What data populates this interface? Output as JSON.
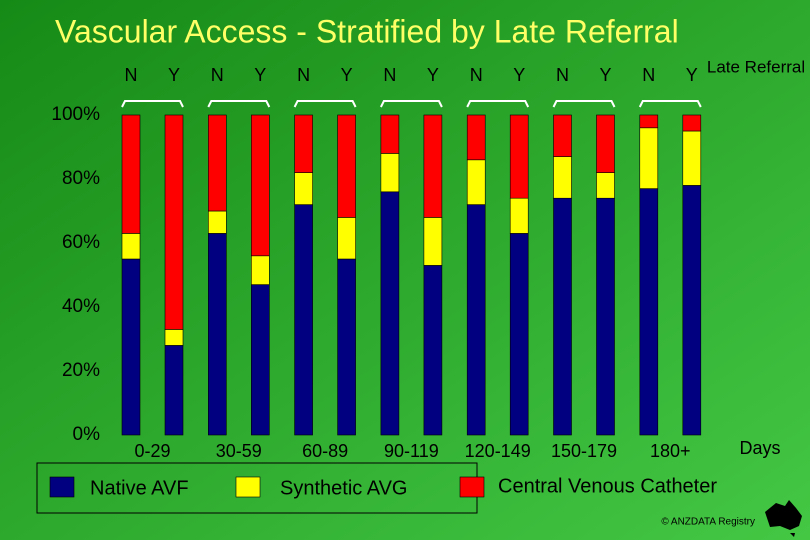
{
  "chart_data": {
    "type": "bar",
    "stacked": true,
    "title": "Vascular Access - Stratified by Late Referral",
    "subgroup_title": "Late Referral",
    "x_label": "Days",
    "groups": [
      "0-29",
      "30-59",
      "60-89",
      "90-119",
      "120-149",
      "150-179",
      "180+"
    ],
    "subgroups": [
      "N",
      "Y"
    ],
    "series": [
      {
        "name": "Native AVF",
        "color": "#000080",
        "values": [
          55,
          28,
          63,
          47,
          72,
          55,
          76,
          53,
          72,
          63,
          74,
          74,
          77,
          78
        ]
      },
      {
        "name": "Synthetic AVG",
        "color": "#ffff00",
        "values": [
          8,
          5,
          7,
          9,
          10,
          13,
          12,
          15,
          14,
          11,
          13,
          8,
          19,
          17
        ]
      },
      {
        "name": "Central Venous Catheter",
        "color": "#ff0000",
        "values": [
          37,
          67,
          30,
          44,
          18,
          32,
          12,
          32,
          14,
          26,
          13,
          18,
          4,
          5
        ]
      }
    ],
    "ylim": [
      0,
      100
    ],
    "yticks": [
      {
        "value": 0,
        "label": "0%"
      },
      {
        "value": 20,
        "label": "20%"
      },
      {
        "value": 40,
        "label": "40%"
      },
      {
        "value": 60,
        "label": "60%"
      },
      {
        "value": 80,
        "label": "80%"
      },
      {
        "value": 100,
        "label": "100%"
      }
    ],
    "footer": "© ANZDATA Registry"
  }
}
